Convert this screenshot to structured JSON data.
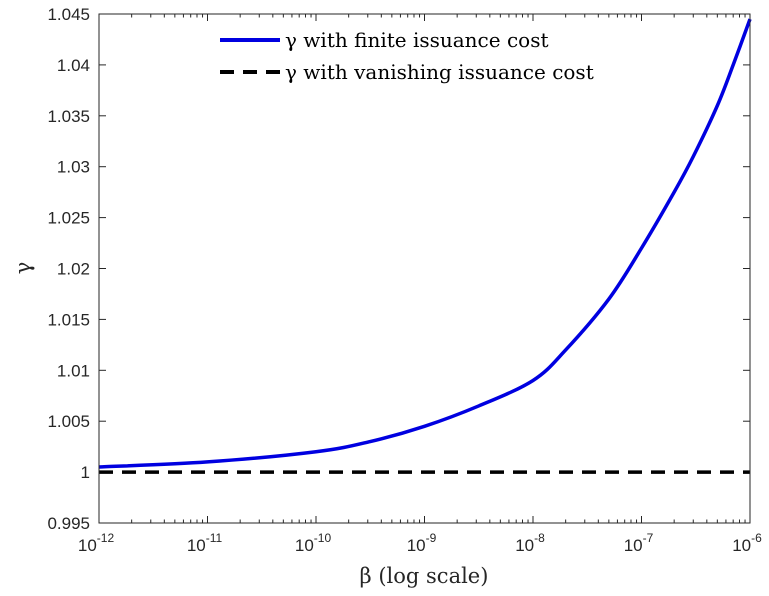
{
  "chart_data": {
    "type": "line",
    "xscale": "log",
    "xlabel": "β (log scale)",
    "ylabel": "γ",
    "xlim": [
      1e-12,
      1e-06
    ],
    "ylim": [
      0.995,
      1.045
    ],
    "grid": false,
    "legend_position": "top",
    "x_ticks": [
      {
        "base": "10",
        "exp": "-12"
      },
      {
        "base": "10",
        "exp": "-11"
      },
      {
        "base": "10",
        "exp": "-10"
      },
      {
        "base": "10",
        "exp": "-9"
      },
      {
        "base": "10",
        "exp": "-8"
      },
      {
        "base": "10",
        "exp": "-7"
      },
      {
        "base": "10",
        "exp": "-6"
      }
    ],
    "y_ticks": [
      "0.995",
      "1",
      "1.005",
      "1.01",
      "1.015",
      "1.02",
      "1.025",
      "1.03",
      "1.035",
      "1.04",
      "1.045"
    ],
    "series": [
      {
        "name": "γ with finite issuance cost",
        "color": "#0000e0",
        "style": "solid",
        "x": [
          1e-12,
          1e-11,
          1e-10,
          3.16e-10,
          1e-09,
          3.16e-09,
          1e-08,
          2e-08,
          5e-08,
          1e-07,
          2e-07,
          3e-07,
          5e-07,
          7e-07,
          1e-06
        ],
        "y": [
          1.0005,
          1.001,
          1.002,
          1.003,
          1.0045,
          1.0065,
          1.009,
          1.012,
          1.017,
          1.022,
          1.0275,
          1.031,
          1.036,
          1.04,
          1.0445
        ]
      },
      {
        "name": "γ with vanishing issuance cost",
        "color": "#000000",
        "style": "dashed",
        "x": [
          1e-12,
          1e-06
        ],
        "y": [
          1.0,
          1.0
        ]
      }
    ]
  }
}
